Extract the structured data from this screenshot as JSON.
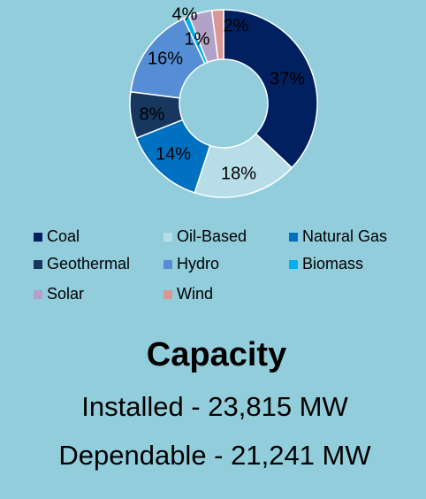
{
  "chart_data": {
    "type": "donut",
    "categories": [
      "Coal",
      "Oil-Based",
      "Natural Gas",
      "Geothermal",
      "Hydro",
      "Biomass",
      "Solar",
      "Wind"
    ],
    "values": [
      37,
      18,
      14,
      8,
      16,
      1,
      4,
      2
    ],
    "value_labels": [
      "37%",
      "18%",
      "14%",
      "8%",
      "16%",
      "1%",
      "4%",
      "2%"
    ],
    "colors": [
      "#002060",
      "#b7dee8",
      "#0070c0",
      "#17375e",
      "#558ed5",
      "#00b0f0",
      "#b3a2c7",
      "#d99694"
    ],
    "legend": "bottom"
  },
  "footer": {
    "title": "Capacity",
    "lines": [
      "Installed - 23,815 MW",
      "Dependable - 21,241 MW"
    ]
  }
}
